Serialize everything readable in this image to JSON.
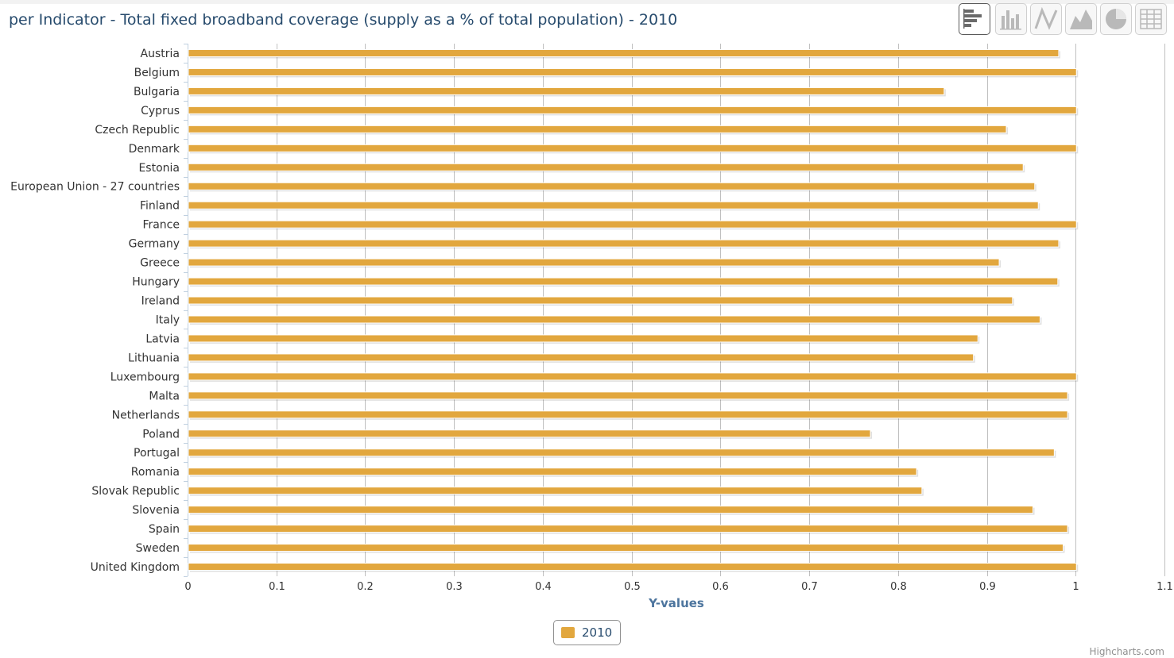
{
  "title": "per Indicator - Total fixed broadband coverage (supply as a % of total population) - 2010",
  "toolbar": {
    "buttons": [
      {
        "icon": "bar-chart-icon",
        "active": true
      },
      {
        "icon": "column-chart-icon",
        "active": false
      },
      {
        "icon": "line-chart-icon",
        "active": false
      },
      {
        "icon": "area-chart-icon",
        "active": false
      },
      {
        "icon": "pie-chart-icon",
        "active": false
      },
      {
        "icon": "table-icon",
        "active": false
      }
    ]
  },
  "colors": {
    "bar": "#E2A73E",
    "grid": "#c0c0c0",
    "axis_label": "#4d759e",
    "text": "#274b6d",
    "tick_text": "#333333"
  },
  "legend": {
    "label": "2010"
  },
  "credits": "Highcharts.com",
  "chart_data": {
    "type": "bar",
    "orientation": "horizontal",
    "categories": [
      "Austria",
      "Belgium",
      "Bulgaria",
      "Cyprus",
      "Czech Republic",
      "Denmark",
      "Estonia",
      "European Union - 27 countries",
      "Finland",
      "France",
      "Germany",
      "Greece",
      "Hungary",
      "Ireland",
      "Italy",
      "Latvia",
      "Lithuania",
      "Luxembourg",
      "Malta",
      "Netherlands",
      "Poland",
      "Portugal",
      "Romania",
      "Slovak Republic",
      "Slovenia",
      "Spain",
      "Sweden",
      "United Kingdom"
    ],
    "series": [
      {
        "name": "2010",
        "values": [
          0.98,
          1.0,
          0.851,
          1.0,
          0.921,
          1.0,
          0.94,
          0.953,
          0.957,
          1.0,
          0.98,
          0.913,
          0.979,
          0.928,
          0.959,
          0.889,
          0.884,
          1.0,
          0.99,
          0.99,
          0.768,
          0.975,
          0.82,
          0.826,
          0.951,
          0.99,
          0.985,
          1.0
        ]
      }
    ],
    "xlabel": "Y-values",
    "xlim": [
      0,
      1.1
    ],
    "xticks": [
      "0",
      "0.1",
      "0.2",
      "0.3",
      "0.4",
      "0.5",
      "0.6",
      "0.7",
      "0.8",
      "0.9",
      "1",
      "1.1"
    ],
    "grid": true,
    "legend_position": "bottom-center"
  }
}
